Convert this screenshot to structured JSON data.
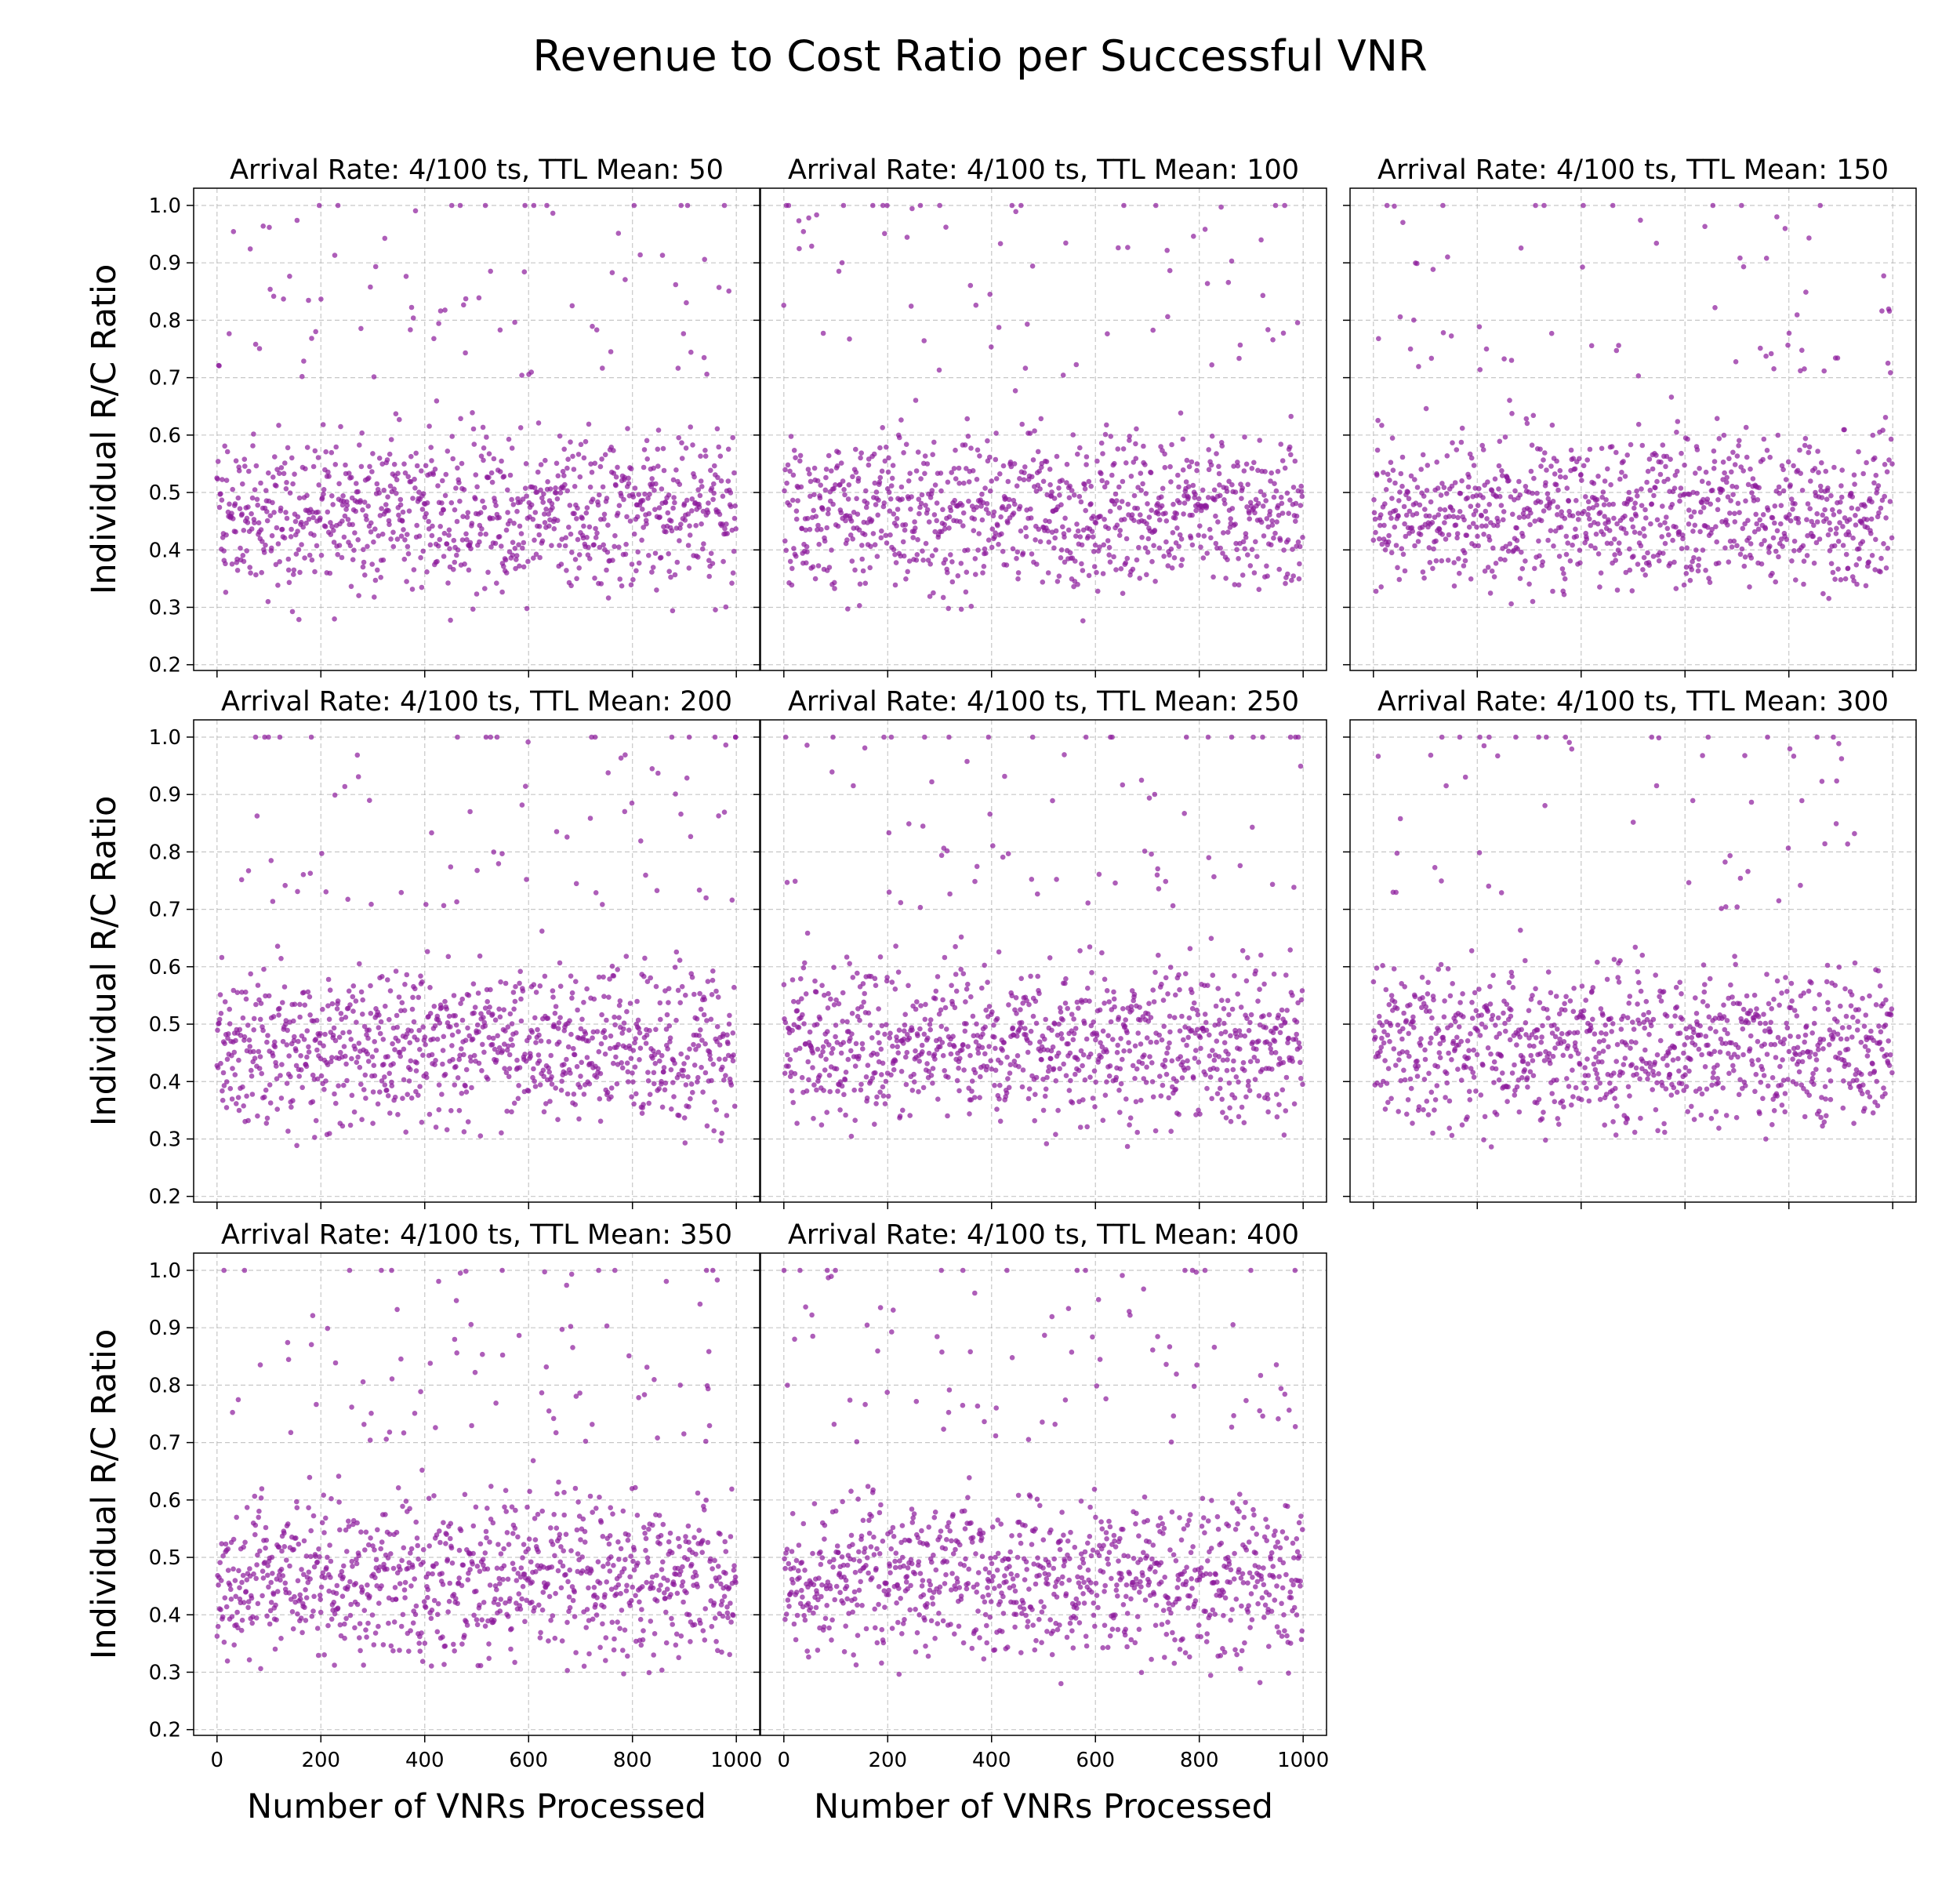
{
  "figure": {
    "title": "Revenue to Cost Ratio per Successful VNR",
    "marker_color": "#8b1a9b"
  },
  "chart_data": [
    {
      "type": "scatter",
      "title": "Arrival Rate: 4/100 ts, TTL Mean: 50",
      "ylabel": "Individual R/C Ratio",
      "xlabel": "",
      "n_points": 1000,
      "xlim": [
        -45,
        1045
      ],
      "ylim": [
        0.19,
        1.03
      ],
      "x_ticks": [
        0,
        200,
        400,
        600,
        800,
        1000
      ],
      "y_ticks": [
        0.2,
        0.3,
        0.4,
        0.5,
        0.6,
        0.7,
        0.8,
        0.9,
        1.0
      ],
      "y_range_observed": [
        0.25,
        1.0
      ],
      "typical_range": [
        0.35,
        0.6
      ],
      "grid": true
    },
    {
      "type": "scatter",
      "title": "Arrival Rate: 4/100 ts, TTL Mean: 100",
      "ylabel": "",
      "xlabel": "",
      "n_points": 1000,
      "xlim": [
        -45,
        1045
      ],
      "ylim": [
        0.19,
        1.03
      ],
      "x_ticks": [
        0,
        200,
        400,
        600,
        800,
        1000
      ],
      "y_ticks": [
        0.2,
        0.3,
        0.4,
        0.5,
        0.6,
        0.7,
        0.8,
        0.9,
        1.0
      ],
      "y_range_observed": [
        0.26,
        1.0
      ],
      "typical_range": [
        0.35,
        0.6
      ],
      "grid": true
    },
    {
      "type": "scatter",
      "title": "Arrival Rate: 4/100 ts, TTL Mean: 150",
      "ylabel": "",
      "xlabel": "",
      "n_points": 1000,
      "xlim": [
        -45,
        1045
      ],
      "ylim": [
        0.19,
        1.03
      ],
      "x_ticks": [
        0,
        200,
        400,
        600,
        800,
        1000
      ],
      "y_ticks": [
        0.2,
        0.3,
        0.4,
        0.5,
        0.6,
        0.7,
        0.8,
        0.9,
        1.0
      ],
      "y_range_observed": [
        0.26,
        1.0
      ],
      "typical_range": [
        0.35,
        0.6
      ],
      "grid": true
    },
    {
      "type": "scatter",
      "title": "Arrival Rate: 4/100 ts, TTL Mean: 200",
      "ylabel": "Individual R/C Ratio",
      "xlabel": "",
      "n_points": 1000,
      "xlim": [
        -45,
        1045
      ],
      "ylim": [
        0.19,
        1.03
      ],
      "x_ticks": [
        0,
        200,
        400,
        600,
        800,
        1000
      ],
      "y_ticks": [
        0.2,
        0.3,
        0.4,
        0.5,
        0.6,
        0.7,
        0.8,
        0.9,
        1.0
      ],
      "y_range_observed": [
        0.27,
        1.0
      ],
      "typical_range": [
        0.35,
        0.6
      ],
      "grid": true
    },
    {
      "type": "scatter",
      "title": "Arrival Rate: 4/100 ts, TTL Mean: 250",
      "ylabel": "",
      "xlabel": "",
      "n_points": 1000,
      "xlim": [
        -45,
        1045
      ],
      "ylim": [
        0.19,
        1.03
      ],
      "x_ticks": [
        0,
        200,
        400,
        600,
        800,
        1000
      ],
      "y_ticks": [
        0.2,
        0.3,
        0.4,
        0.5,
        0.6,
        0.7,
        0.8,
        0.9,
        1.0
      ],
      "y_range_observed": [
        0.27,
        1.0
      ],
      "typical_range": [
        0.35,
        0.6
      ],
      "grid": true
    },
    {
      "type": "scatter",
      "title": "Arrival Rate: 4/100 ts, TTL Mean: 300",
      "ylabel": "",
      "xlabel": "",
      "n_points": 1000,
      "xlim": [
        -45,
        1045
      ],
      "ylim": [
        0.19,
        1.03
      ],
      "x_ticks": [
        0,
        200,
        400,
        600,
        800,
        1000
      ],
      "y_ticks": [
        0.2,
        0.3,
        0.4,
        0.5,
        0.6,
        0.7,
        0.8,
        0.9,
        1.0
      ],
      "y_range_observed": [
        0.24,
        1.0
      ],
      "typical_range": [
        0.35,
        0.6
      ],
      "grid": true
    },
    {
      "type": "scatter",
      "title": "Arrival Rate: 4/100 ts, TTL Mean: 350",
      "ylabel": "Individual R/C Ratio",
      "xlabel": "Number of VNRs Processed",
      "n_points": 1000,
      "xlim": [
        -45,
        1045
      ],
      "ylim": [
        0.19,
        1.03
      ],
      "x_ticks": [
        0,
        200,
        400,
        600,
        800,
        1000
      ],
      "y_ticks": [
        0.2,
        0.3,
        0.4,
        0.5,
        0.6,
        0.7,
        0.8,
        0.9,
        1.0
      ],
      "y_range_observed": [
        0.25,
        1.0
      ],
      "typical_range": [
        0.35,
        0.6
      ],
      "grid": true
    },
    {
      "type": "scatter",
      "title": "Arrival Rate: 4/100 ts, TTL Mean: 400",
      "ylabel": "",
      "xlabel": "Number of VNRs Processed",
      "n_points": 1000,
      "xlim": [
        -45,
        1045
      ],
      "ylim": [
        0.19,
        1.03
      ],
      "x_ticks": [
        0,
        200,
        400,
        600,
        800,
        1000
      ],
      "y_ticks": [
        0.2,
        0.3,
        0.4,
        0.5,
        0.6,
        0.7,
        0.8,
        0.9,
        1.0
      ],
      "y_range_observed": [
        0.23,
        1.0
      ],
      "typical_range": [
        0.35,
        0.6
      ],
      "grid": true
    }
  ]
}
